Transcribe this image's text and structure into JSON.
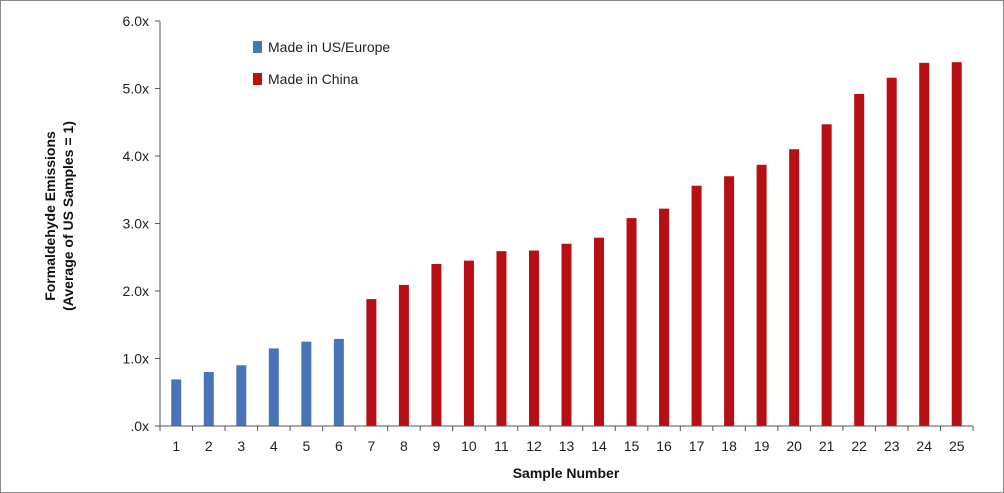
{
  "chart_data": {
    "type": "bar",
    "title": "",
    "xlabel": "Sample Number",
    "ylabel_lines": [
      "Formaldehyde Emissions",
      "(Average of US Samples = 1)"
    ],
    "ylim": [
      0,
      6
    ],
    "yticks": [
      0,
      1,
      2,
      3,
      4,
      5,
      6
    ],
    "ytick_labels": [
      ".0x",
      "1.0x",
      "2.0x",
      "3.0x",
      "4.0x",
      "5.0x",
      "6.0x"
    ],
    "grid": false,
    "legend_position": "top-left",
    "categories": [
      "1",
      "2",
      "3",
      "4",
      "5",
      "6",
      "7",
      "8",
      "9",
      "10",
      "11",
      "12",
      "13",
      "14",
      "15",
      "16",
      "17",
      "18",
      "19",
      "20",
      "21",
      "22",
      "23",
      "24",
      "25"
    ],
    "series": [
      {
        "name": "Made in US/Europe",
        "color": "#4a74b8",
        "values": [
          0.69,
          0.8,
          0.9,
          1.15,
          1.25,
          1.29,
          null,
          null,
          null,
          null,
          null,
          null,
          null,
          null,
          null,
          null,
          null,
          null,
          null,
          null,
          null,
          null,
          null,
          null,
          null
        ]
      },
      {
        "name": "Made in China",
        "color": "#b80f14",
        "values": [
          null,
          null,
          null,
          null,
          null,
          null,
          1.88,
          2.09,
          2.4,
          2.45,
          2.59,
          2.6,
          2.7,
          2.79,
          3.08,
          3.22,
          3.56,
          3.7,
          3.87,
          4.1,
          4.47,
          4.92,
          5.16,
          5.38,
          5.39
        ]
      }
    ]
  }
}
